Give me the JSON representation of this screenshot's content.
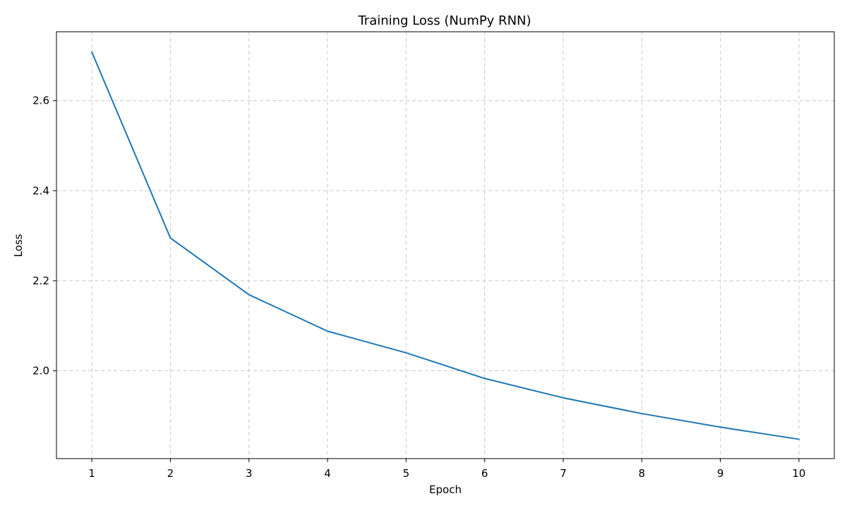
{
  "chart_data": {
    "type": "line",
    "title": "Training Loss (NumPy RNN)",
    "xlabel": "Epoch",
    "ylabel": "Loss",
    "x": [
      1,
      2,
      3,
      4,
      5,
      6,
      7,
      8,
      9,
      10
    ],
    "xticks": [
      "1",
      "2",
      "3",
      "4",
      "5",
      "6",
      "7",
      "8",
      "9",
      "10"
    ],
    "yticks": [
      "2.0",
      "2.2",
      "2.4",
      "2.6"
    ],
    "ytick_values": [
      2.0,
      2.2,
      2.4,
      2.6
    ],
    "xlim": [
      0.55,
      10.45
    ],
    "ylim": [
      1.805,
      2.753
    ],
    "grid": true,
    "series": [
      {
        "values": [
          2.708,
          2.295,
          2.169,
          2.088,
          2.04,
          1.983,
          1.94,
          1.905,
          1.875,
          1.848
        ],
        "color": "#1f77b4"
      }
    ]
  }
}
